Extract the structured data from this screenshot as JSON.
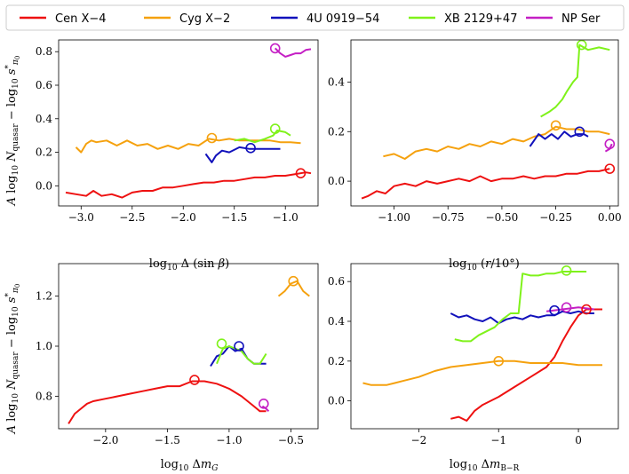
{
  "colors": {
    "Cen X-4": "#ee1111",
    "Cyg X-2": "#f5a10e",
    "4U 0919-54": "#1111bb",
    "XB 2129+47": "#7ff21a",
    "NP Ser": "#c41fc4"
  },
  "legend": {
    "placement": "top",
    "entries": [
      "Cen X−4",
      "Cyg X−2",
      "4U 0919−54",
      "XB 2129+47",
      "NP Ser"
    ],
    "keys": [
      "Cen X-4",
      "Cyg X-2",
      "4U 0919-54",
      "XB 2129+47",
      "NP Ser"
    ]
  },
  "chart_data": [
    {
      "type": "line",
      "panel": "top-left",
      "xlabel": "log10 Δ (sin β)",
      "ylabel": "A log10 N_quasar − log10 s*_π0",
      "xlim": [
        -3.22,
        -0.68
      ],
      "ylim": [
        -0.12,
        0.87
      ],
      "xticks": [
        -3.0,
        -2.5,
        -2.0,
        -1.5,
        -1.0
      ],
      "xtick_labels": [
        "−3.0",
        "−2.5",
        "−2.0",
        "−1.5",
        "−1.0"
      ],
      "yticks": [
        0.0,
        0.2,
        0.4,
        0.6,
        0.8
      ],
      "ytick_labels": [
        "0.0",
        "0.2",
        "0.4",
        "0.6",
        "0.8"
      ],
      "series": [
        {
          "name": "Cen X-4",
          "x": [
            -3.15,
            -3.05,
            -2.95,
            -2.88,
            -2.8,
            -2.7,
            -2.6,
            -2.5,
            -2.4,
            -2.3,
            -2.2,
            -2.1,
            -2.0,
            -1.9,
            -1.8,
            -1.7,
            -1.6,
            -1.5,
            -1.4,
            -1.3,
            -1.2,
            -1.1,
            -1.0,
            -0.9,
            -0.8,
            -0.75
          ],
          "y": [
            -0.04,
            -0.05,
            -0.06,
            -0.03,
            -0.06,
            -0.05,
            -0.07,
            -0.04,
            -0.03,
            -0.03,
            -0.01,
            -0.01,
            0.0,
            0.01,
            0.02,
            0.02,
            0.03,
            0.03,
            0.04,
            0.05,
            0.05,
            0.06,
            0.06,
            0.07,
            0.08,
            0.075
          ],
          "marker": {
            "x": -0.85,
            "y": 0.075
          }
        },
        {
          "name": "Cyg X-2",
          "x": [
            -3.05,
            -3.0,
            -2.95,
            -2.9,
            -2.85,
            -2.75,
            -2.65,
            -2.55,
            -2.45,
            -2.35,
            -2.25,
            -2.15,
            -2.05,
            -1.95,
            -1.85,
            -1.75,
            -1.65,
            -1.55,
            -1.45,
            -1.35,
            -1.25,
            -1.15,
            -1.05,
            -0.95,
            -0.85
          ],
          "y": [
            0.23,
            0.2,
            0.25,
            0.27,
            0.26,
            0.27,
            0.24,
            0.27,
            0.24,
            0.25,
            0.22,
            0.24,
            0.22,
            0.25,
            0.24,
            0.28,
            0.27,
            0.28,
            0.27,
            0.27,
            0.27,
            0.27,
            0.26,
            0.26,
            0.255
          ],
          "marker": {
            "x": -1.72,
            "y": 0.285
          }
        },
        {
          "name": "4U 0919-54",
          "x": [
            -1.78,
            -1.72,
            -1.68,
            -1.62,
            -1.55,
            -1.45,
            -1.35,
            -1.25,
            -1.15,
            -1.05
          ],
          "y": [
            0.19,
            0.14,
            0.18,
            0.21,
            0.2,
            0.23,
            0.22,
            0.22,
            0.22,
            0.22
          ],
          "marker": {
            "x": -1.34,
            "y": 0.225
          }
        },
        {
          "name": "XB 2129+47",
          "x": [
            -1.5,
            -1.4,
            -1.3,
            -1.2,
            -1.12,
            -1.08,
            -1.0,
            -0.95
          ],
          "y": [
            0.27,
            0.28,
            0.26,
            0.28,
            0.3,
            0.33,
            0.32,
            0.3
          ],
          "marker": {
            "x": -1.1,
            "y": 0.34
          }
        },
        {
          "name": "NP Ser",
          "x": [
            -1.1,
            -1.05,
            -1.0,
            -0.95,
            -0.9,
            -0.85,
            -0.8,
            -0.75
          ],
          "y": [
            0.82,
            0.79,
            0.77,
            0.78,
            0.79,
            0.79,
            0.81,
            0.815
          ],
          "marker": {
            "x": -1.1,
            "y": 0.82
          }
        }
      ]
    },
    {
      "type": "line",
      "panel": "top-right",
      "xlabel": "log10 (r/10°)",
      "ylabel": "",
      "xlim": [
        -1.2,
        0.04
      ],
      "ylim": [
        -0.1,
        0.57
      ],
      "xticks": [
        -1.0,
        -0.75,
        -0.5,
        -0.25,
        0.0
      ],
      "xtick_labels": [
        "−1.00",
        "−0.75",
        "−0.50",
        "−0.25",
        "0.00"
      ],
      "yticks": [
        0.0,
        0.2,
        0.4
      ],
      "ytick_labels": [
        "0.0",
        "0.2",
        "0.4"
      ],
      "series": [
        {
          "name": "Cen X-4",
          "x": [
            -1.15,
            -1.12,
            -1.08,
            -1.04,
            -1.0,
            -0.95,
            -0.9,
            -0.85,
            -0.8,
            -0.75,
            -0.7,
            -0.65,
            -0.6,
            -0.55,
            -0.5,
            -0.45,
            -0.4,
            -0.35,
            -0.3,
            -0.25,
            -0.2,
            -0.15,
            -0.1,
            -0.05,
            0.0
          ],
          "y": [
            -0.07,
            -0.06,
            -0.04,
            -0.05,
            -0.02,
            -0.01,
            -0.02,
            0.0,
            -0.01,
            0.0,
            0.01,
            0.0,
            0.02,
            0.0,
            0.01,
            0.01,
            0.02,
            0.01,
            0.02,
            0.02,
            0.03,
            0.03,
            0.04,
            0.04,
            0.05
          ],
          "marker": {
            "x": 0.0,
            "y": 0.05
          }
        },
        {
          "name": "Cyg X-2",
          "x": [
            -1.05,
            -1.0,
            -0.95,
            -0.9,
            -0.85,
            -0.8,
            -0.75,
            -0.7,
            -0.65,
            -0.6,
            -0.55,
            -0.5,
            -0.45,
            -0.4,
            -0.35,
            -0.3,
            -0.25,
            -0.2,
            -0.15,
            -0.1,
            -0.05,
            0.0
          ],
          "y": [
            0.1,
            0.11,
            0.09,
            0.12,
            0.13,
            0.12,
            0.14,
            0.13,
            0.15,
            0.14,
            0.16,
            0.15,
            0.17,
            0.16,
            0.18,
            0.19,
            0.22,
            0.21,
            0.21,
            0.2,
            0.2,
            0.19
          ],
          "marker": {
            "x": -0.25,
            "y": 0.225
          }
        },
        {
          "name": "4U 0919-54",
          "x": [
            -0.37,
            -0.33,
            -0.3,
            -0.27,
            -0.24,
            -0.21,
            -0.18,
            -0.15,
            -0.12,
            -0.1
          ],
          "y": [
            0.14,
            0.19,
            0.17,
            0.19,
            0.17,
            0.2,
            0.18,
            0.19,
            0.19,
            0.18
          ],
          "marker": {
            "x": -0.14,
            "y": 0.2
          }
        },
        {
          "name": "XB 2129+47",
          "x": [
            -0.32,
            -0.28,
            -0.25,
            -0.22,
            -0.2,
            -0.17,
            -0.15,
            -0.14,
            -0.1,
            -0.05,
            0.0
          ],
          "y": [
            0.26,
            0.28,
            0.3,
            0.33,
            0.36,
            0.4,
            0.42,
            0.55,
            0.53,
            0.54,
            0.53
          ],
          "marker": {
            "x": -0.13,
            "y": 0.55
          }
        },
        {
          "name": "NP Ser",
          "x": [
            -0.02,
            0.0,
            0.01
          ],
          "y": [
            0.12,
            0.13,
            0.15
          ],
          "marker": {
            "x": 0.0,
            "y": 0.15
          }
        }
      ]
    },
    {
      "type": "line",
      "panel": "bottom-left",
      "xlabel": "log10 Δm_G",
      "ylabel": "A log10 N_quasar − log10 s*_π0",
      "xlim": [
        -2.38,
        -0.28
      ],
      "ylim": [
        0.67,
        1.33
      ],
      "xticks": [
        -2.0,
        -1.5,
        -1.0,
        -0.5
      ],
      "xtick_labels": [
        "−2.0",
        "−1.5",
        "−1.0",
        "−0.5"
      ],
      "yticks": [
        0.8,
        1.0,
        1.2
      ],
      "ytick_labels": [
        "0.8",
        "1.0",
        "1.2"
      ],
      "series": [
        {
          "name": "Cen X-4",
          "x": [
            -2.3,
            -2.25,
            -2.2,
            -2.15,
            -2.1,
            -2.0,
            -1.9,
            -1.8,
            -1.7,
            -1.6,
            -1.5,
            -1.4,
            -1.3,
            -1.2,
            -1.1,
            -1.0,
            -0.9,
            -0.8,
            -0.75,
            -0.7
          ],
          "y": [
            0.69,
            0.73,
            0.75,
            0.77,
            0.78,
            0.79,
            0.8,
            0.81,
            0.82,
            0.83,
            0.84,
            0.84,
            0.86,
            0.86,
            0.85,
            0.83,
            0.8,
            0.76,
            0.74,
            0.74
          ],
          "marker": {
            "x": -1.28,
            "y": 0.865
          }
        },
        {
          "name": "Cyg X-2",
          "x": [
            -0.6,
            -0.55,
            -0.5,
            -0.45,
            -0.4,
            -0.35
          ],
          "y": [
            1.2,
            1.22,
            1.25,
            1.26,
            1.22,
            1.2
          ],
          "marker": {
            "x": -0.48,
            "y": 1.26
          }
        },
        {
          "name": "4U 0919-54",
          "x": [
            -1.15,
            -1.1,
            -1.05,
            -1.0,
            -0.95,
            -0.9,
            -0.85,
            -0.8,
            -0.75,
            -0.7
          ],
          "y": [
            0.92,
            0.96,
            0.97,
            1.0,
            0.98,
            0.99,
            0.95,
            0.93,
            0.93,
            0.93
          ],
          "marker": {
            "x": -0.92,
            "y": 1.0
          }
        },
        {
          "name": "XB 2129+47",
          "x": [
            -1.1,
            -1.05,
            -1.0,
            -0.95,
            -0.9,
            -0.85,
            -0.8,
            -0.75,
            -0.7
          ],
          "y": [
            0.93,
            0.99,
            1.0,
            0.99,
            0.98,
            0.95,
            0.93,
            0.93,
            0.97
          ],
          "marker": {
            "x": -1.06,
            "y": 1.01
          }
        },
        {
          "name": "NP Ser",
          "x": [
            -0.73,
            -0.7,
            -0.68
          ],
          "y": [
            0.76,
            0.75,
            0.74
          ],
          "marker": {
            "x": -0.72,
            "y": 0.77
          }
        }
      ]
    },
    {
      "type": "line",
      "panel": "bottom-right",
      "xlabel": "log10 Δm_B−R",
      "ylabel": "",
      "xlim": [
        -2.85,
        0.5
      ],
      "ylim": [
        -0.14,
        0.69
      ],
      "xticks": [
        -2,
        -1,
        0
      ],
      "xtick_labels": [
        "−2",
        "−1",
        "0"
      ],
      "yticks": [
        0.0,
        0.2,
        0.4,
        0.6
      ],
      "ytick_labels": [
        "0.0",
        "0.2",
        "0.4",
        "0.6"
      ],
      "series": [
        {
          "name": "Cen X-4",
          "x": [
            -1.6,
            -1.5,
            -1.4,
            -1.3,
            -1.2,
            -1.0,
            -0.8,
            -0.6,
            -0.4,
            -0.3,
            -0.2,
            -0.1,
            0.0,
            0.1,
            0.2,
            0.3
          ],
          "y": [
            -0.09,
            -0.08,
            -0.1,
            -0.05,
            -0.02,
            0.02,
            0.07,
            0.12,
            0.17,
            0.22,
            0.3,
            0.37,
            0.43,
            0.46,
            0.46,
            0.46
          ],
          "marker": null
        },
        {
          "name": "Cyg X-2",
          "x": [
            -2.7,
            -2.6,
            -2.5,
            -2.4,
            -2.3,
            -2.2,
            -2.0,
            -1.8,
            -1.6,
            -1.4,
            -1.2,
            -1.0,
            -0.8,
            -0.6,
            -0.4,
            -0.2,
            0.0,
            0.3
          ],
          "y": [
            0.09,
            0.08,
            0.08,
            0.08,
            0.09,
            0.1,
            0.12,
            0.15,
            0.17,
            0.18,
            0.19,
            0.2,
            0.2,
            0.19,
            0.19,
            0.19,
            0.18,
            0.18
          ],
          "marker": {
            "x": -1.0,
            "y": 0.2
          }
        },
        {
          "name": "4U 0919-54",
          "x": [
            -1.6,
            -1.5,
            -1.4,
            -1.3,
            -1.2,
            -1.1,
            -1.0,
            -0.9,
            -0.8,
            -0.7,
            -0.6,
            -0.5,
            -0.4,
            -0.3,
            -0.2,
            -0.1,
            0.0,
            0.1,
            0.2
          ],
          "y": [
            0.44,
            0.42,
            0.43,
            0.41,
            0.4,
            0.42,
            0.39,
            0.41,
            0.42,
            0.41,
            0.43,
            0.42,
            0.43,
            0.43,
            0.45,
            0.44,
            0.45,
            0.44,
            0.44
          ],
          "marker": {
            "x": -0.3,
            "y": 0.455
          }
        },
        {
          "name": "XB 2129+47",
          "x": [
            -1.55,
            -1.45,
            -1.35,
            -1.25,
            -1.15,
            -1.05,
            -0.95,
            -0.85,
            -0.75,
            -0.7,
            -0.6,
            -0.5,
            -0.4,
            -0.3,
            -0.2,
            -0.1,
            0.0,
            0.1
          ],
          "y": [
            0.31,
            0.3,
            0.3,
            0.33,
            0.35,
            0.37,
            0.41,
            0.44,
            0.44,
            0.64,
            0.63,
            0.63,
            0.64,
            0.64,
            0.65,
            0.65,
            0.65,
            0.65
          ],
          "marker": {
            "x": -0.15,
            "y": 0.655
          }
        },
        {
          "name": "NP Ser",
          "x": [
            -0.4,
            -0.2,
            0.0,
            0.2
          ],
          "y": [
            0.45,
            0.46,
            0.47,
            0.46
          ],
          "marker": {
            "x": -0.15,
            "y": 0.47
          }
        }
      ],
      "extra_markers": [
        {
          "name": "Cen X-4",
          "x": 0.1,
          "y": 0.46
        }
      ]
    }
  ]
}
